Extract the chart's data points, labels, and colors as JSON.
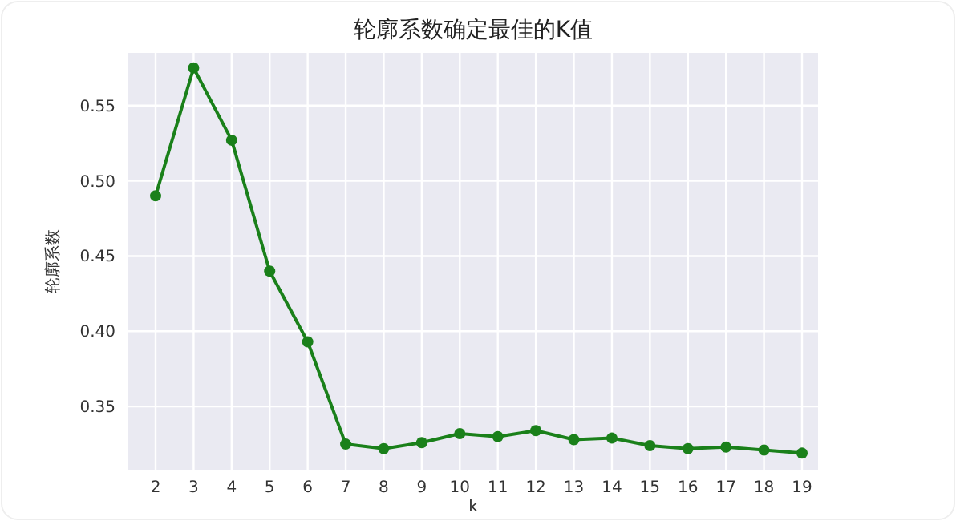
{
  "chart_data": {
    "type": "line",
    "title": "轮廓系数确定最佳的K值",
    "xlabel": "k",
    "ylabel": "轮廓系数",
    "categories": [
      "2",
      "3",
      "4",
      "5",
      "6",
      "7",
      "8",
      "9",
      "10",
      "11",
      "12",
      "13",
      "14",
      "15",
      "16",
      "17",
      "18",
      "19"
    ],
    "series": [
      {
        "color": "#1a801a",
        "values": [
          0.49,
          0.575,
          0.527,
          0.44,
          0.393,
          0.325,
          0.322,
          0.326,
          0.332,
          0.33,
          0.334,
          0.328,
          0.329,
          0.324,
          0.322,
          0.323,
          0.321,
          0.319
        ]
      }
    ],
    "ylim": [
      0.308,
      0.585
    ],
    "yticks": [
      {
        "value": 0.35,
        "label": "0.35"
      },
      {
        "value": 0.4,
        "label": "0.40"
      },
      {
        "value": 0.45,
        "label": "0.45"
      },
      {
        "value": 0.5,
        "label": "0.50"
      },
      {
        "value": 0.55,
        "label": "0.55"
      }
    ],
    "grid": true,
    "marker": "circle",
    "line_style": "solid"
  }
}
